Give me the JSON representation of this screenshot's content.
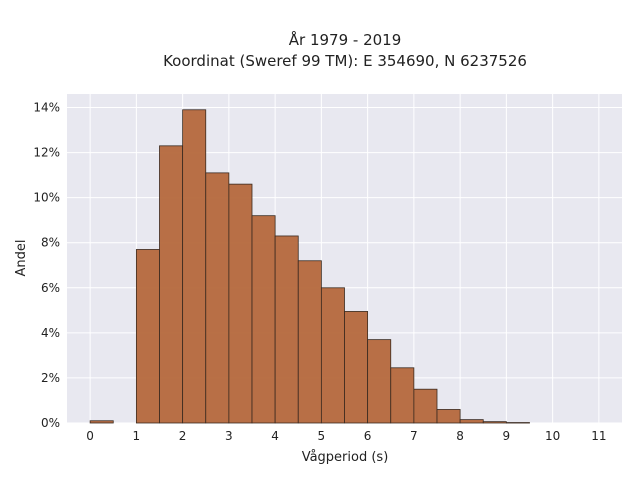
{
  "chart_data": {
    "type": "bar",
    "title": "År 1979 - 2019",
    "subtitle": "Koordinat (Sweref 99 TM): E 354690, N 6237526",
    "xlabel": "Vågperiod (s)",
    "ylabel": "Andel",
    "xlim": [
      -0.5,
      11.5
    ],
    "ylim": [
      0,
      14.6
    ],
    "x_ticks": [
      0,
      1,
      2,
      3,
      4,
      5,
      6,
      7,
      8,
      9,
      10,
      11
    ],
    "y_ticks": [
      0,
      2,
      4,
      6,
      8,
      10,
      12,
      14
    ],
    "y_tick_labels": [
      "0%",
      "2%",
      "4%",
      "6%",
      "8%",
      "10%",
      "12%",
      "14%"
    ],
    "bin_width": 0.5,
    "bins": [
      {
        "start": 0.0,
        "value": 0.1
      },
      {
        "start": 0.5,
        "value": 0.0
      },
      {
        "start": 1.0,
        "value": 7.7
      },
      {
        "start": 1.5,
        "value": 12.3
      },
      {
        "start": 2.0,
        "value": 13.9
      },
      {
        "start": 2.5,
        "value": 11.1
      },
      {
        "start": 3.0,
        "value": 10.6
      },
      {
        "start": 3.5,
        "value": 9.2
      },
      {
        "start": 4.0,
        "value": 8.3
      },
      {
        "start": 4.5,
        "value": 7.2
      },
      {
        "start": 5.0,
        "value": 6.0
      },
      {
        "start": 5.5,
        "value": 4.95
      },
      {
        "start": 6.0,
        "value": 3.7
      },
      {
        "start": 6.5,
        "value": 2.45
      },
      {
        "start": 7.0,
        "value": 1.5
      },
      {
        "start": 7.5,
        "value": 0.6
      },
      {
        "start": 8.0,
        "value": 0.15
      },
      {
        "start": 8.5,
        "value": 0.06
      },
      {
        "start": 9.0,
        "value": 0.02
      }
    ],
    "grid": true,
    "colors": {
      "bar_fill": "#b5683c",
      "bar_edge": "#3a2a20",
      "plot_background": "#e8e8f0",
      "grid": "#ffffff"
    }
  }
}
